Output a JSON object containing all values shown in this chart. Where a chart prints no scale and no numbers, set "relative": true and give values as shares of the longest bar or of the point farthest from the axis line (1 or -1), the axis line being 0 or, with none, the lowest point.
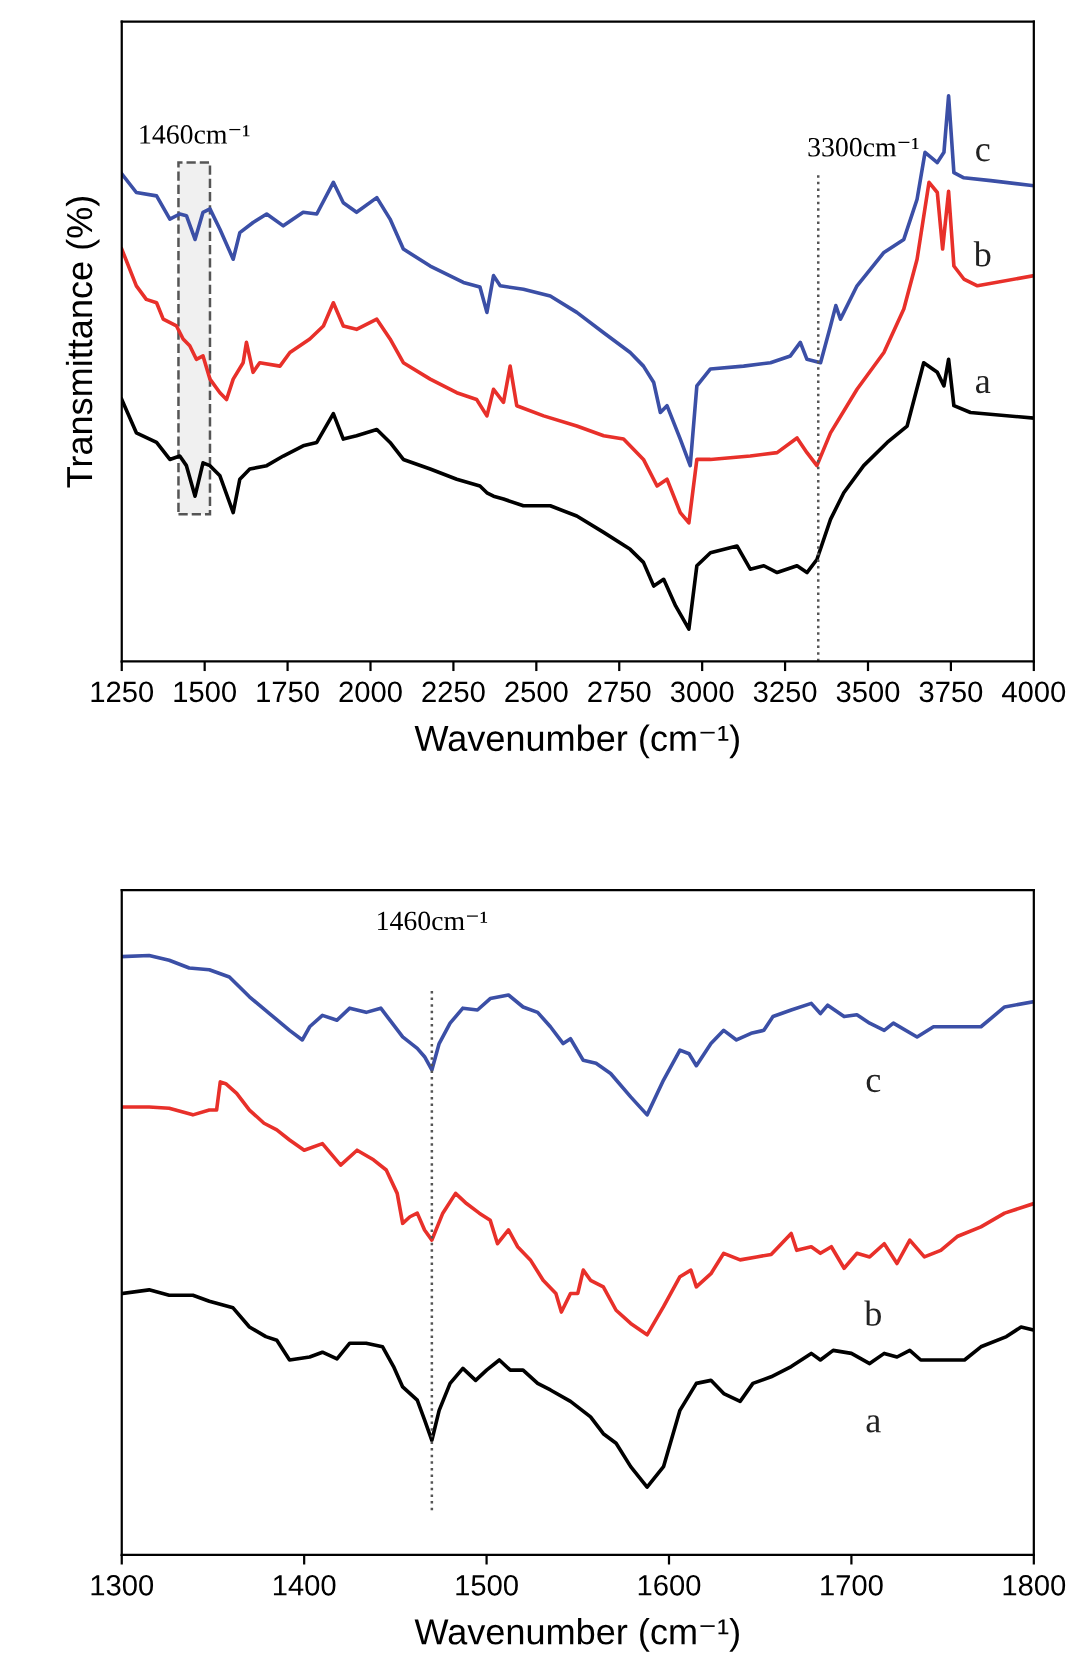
{
  "chart_data": [
    {
      "type": "line",
      "relative": true,
      "xlabel": "Wavenumber (cm⁻¹)",
      "ylabel": "Transmittance (%)",
      "xlim": [
        1250,
        4000
      ],
      "xticks": [
        1250,
        1500,
        1750,
        2000,
        2250,
        2500,
        2750,
        3000,
        3250,
        3500,
        3750,
        4000
      ],
      "ref_lines": [
        {
          "axis": "x",
          "value": 3350,
          "label": "3300cm⁻¹",
          "line_style": "dotted"
        }
      ],
      "bands": [
        {
          "axis": "x",
          "from": 1421,
          "to": 1516,
          "label": "1460cm⁻¹"
        }
      ],
      "series": [
        {
          "name": "c",
          "color": "#3b4fa6",
          "x": [
            1250,
            1294,
            1355,
            1395,
            1425,
            1445,
            1471,
            1495,
            1516,
            1546,
            1586,
            1606,
            1646,
            1687,
            1737,
            1797,
            1838,
            1888,
            1918,
            1958,
            2019,
            2059,
            2099,
            2180,
            2280,
            2330,
            2351,
            2371,
            2391,
            2461,
            2542,
            2622,
            2703,
            2783,
            2823,
            2854,
            2874,
            2894,
            2934,
            2964,
            2984,
            3025,
            3125,
            3206,
            3266,
            3296,
            3316,
            3357,
            3387,
            3403,
            3417,
            3467,
            3548,
            3608,
            3648,
            3672,
            3709,
            3729,
            3743,
            3759,
            3789,
            3870,
            4000
          ],
          "values": [
            0.862,
            0.829,
            0.823,
            0.782,
            0.791,
            0.788,
            0.746,
            0.794,
            0.8,
            0.764,
            0.711,
            0.758,
            0.776,
            0.791,
            0.77,
            0.794,
            0.791,
            0.847,
            0.811,
            0.794,
            0.82,
            0.782,
            0.729,
            0.699,
            0.67,
            0.662,
            0.617,
            0.682,
            0.664,
            0.658,
            0.646,
            0.617,
            0.581,
            0.546,
            0.522,
            0.493,
            0.44,
            0.452,
            0.393,
            0.346,
            0.487,
            0.517,
            0.522,
            0.528,
            0.54,
            0.564,
            0.534,
            0.528,
            0.593,
            0.629,
            0.605,
            0.664,
            0.723,
            0.746,
            0.817,
            0.9,
            0.882,
            0.9,
            1.0,
            0.864,
            0.855,
            0.85,
            0.841
          ]
        },
        {
          "name": "b",
          "color": "#e8302a",
          "x": [
            1250,
            1294,
            1324,
            1355,
            1375,
            1415,
            1435,
            1455,
            1475,
            1495,
            1516,
            1546,
            1566,
            1586,
            1616,
            1626,
            1646,
            1666,
            1727,
            1757,
            1817,
            1858,
            1888,
            1918,
            1958,
            2019,
            2059,
            2099,
            2180,
            2260,
            2320,
            2351,
            2371,
            2401,
            2421,
            2441,
            2522,
            2622,
            2703,
            2763,
            2823,
            2864,
            2894,
            2934,
            2960,
            2984,
            3025,
            3145,
            3226,
            3286,
            3316,
            3346,
            3387,
            3467,
            3548,
            3608,
            3648,
            3684,
            3709,
            3725,
            3743,
            3759,
            3789,
            3830,
            4000
          ],
          "values": [
            0.729,
            0.664,
            0.64,
            0.634,
            0.605,
            0.593,
            0.57,
            0.558,
            0.534,
            0.54,
            0.499,
            0.475,
            0.463,
            0.499,
            0.528,
            0.564,
            0.511,
            0.528,
            0.522,
            0.546,
            0.57,
            0.593,
            0.634,
            0.593,
            0.587,
            0.605,
            0.57,
            0.528,
            0.499,
            0.475,
            0.463,
            0.434,
            0.481,
            0.458,
            0.522,
            0.452,
            0.434,
            0.416,
            0.399,
            0.393,
            0.357,
            0.31,
            0.322,
            0.263,
            0.245,
            0.357,
            0.357,
            0.363,
            0.369,
            0.395,
            0.369,
            0.346,
            0.404,
            0.481,
            0.546,
            0.623,
            0.711,
            0.847,
            0.829,
            0.729,
            0.831,
            0.699,
            0.676,
            0.664,
            0.682
          ]
        },
        {
          "name": "a",
          "color": "#000000",
          "x": [
            1250,
            1294,
            1355,
            1395,
            1425,
            1445,
            1471,
            1495,
            1516,
            1546,
            1586,
            1606,
            1636,
            1687,
            1737,
            1797,
            1838,
            1888,
            1918,
            1958,
            2019,
            2059,
            2099,
            2180,
            2260,
            2330,
            2351,
            2371,
            2401,
            2461,
            2542,
            2622,
            2703,
            2783,
            2823,
            2854,
            2884,
            2920,
            2960,
            2984,
            3025,
            3105,
            3145,
            3186,
            3226,
            3286,
            3316,
            3346,
            3387,
            3427,
            3487,
            3558,
            3618,
            3668,
            3709,
            3729,
            3743,
            3759,
            3809,
            4000
          ],
          "values": [
            0.463,
            0.404,
            0.387,
            0.357,
            0.363,
            0.346,
            0.292,
            0.351,
            0.346,
            0.328,
            0.263,
            0.322,
            0.34,
            0.346,
            0.363,
            0.381,
            0.387,
            0.438,
            0.393,
            0.399,
            0.41,
            0.387,
            0.357,
            0.34,
            0.322,
            0.31,
            0.298,
            0.292,
            0.287,
            0.275,
            0.275,
            0.257,
            0.228,
            0.198,
            0.175,
            0.133,
            0.145,
            0.098,
            0.057,
            0.169,
            0.192,
            0.204,
            0.163,
            0.169,
            0.157,
            0.169,
            0.157,
            0.18,
            0.251,
            0.298,
            0.346,
            0.387,
            0.416,
            0.528,
            0.511,
            0.487,
            0.534,
            0.452,
            0.44,
            0.43
          ]
        }
      ]
    },
    {
      "type": "line",
      "relative": true,
      "xlabel": "Wavenumber (cm⁻¹)",
      "xlim": [
        1300,
        1800
      ],
      "xticks": [
        1300,
        1400,
        1500,
        1600,
        1700,
        1800
      ],
      "ref_lines": [
        {
          "axis": "x",
          "value": 1470,
          "label": "1460cm⁻¹",
          "line_style": "dotted"
        }
      ],
      "series": [
        {
          "name": "c",
          "color": "#3b4fa6",
          "x": [
            1300,
            1315,
            1326,
            1337,
            1348,
            1359,
            1370,
            1381,
            1392,
            1399,
            1403,
            1410,
            1418,
            1425,
            1434,
            1442,
            1447,
            1454,
            1462,
            1466,
            1470,
            1474,
            1480,
            1487,
            1495,
            1502,
            1512,
            1520,
            1528,
            1535,
            1542,
            1546,
            1553,
            1560,
            1568,
            1579,
            1588,
            1597,
            1606,
            1611,
            1615,
            1623,
            1630,
            1637,
            1645,
            1652,
            1657,
            1667,
            1678,
            1683,
            1687,
            1696,
            1703,
            1710,
            1718,
            1723,
            1736,
            1745,
            1758,
            1771,
            1784,
            1800
          ],
          "values": [
            0.998,
            1.0,
            0.992,
            0.979,
            0.976,
            0.964,
            0.931,
            0.903,
            0.875,
            0.859,
            0.881,
            0.9,
            0.892,
            0.912,
            0.905,
            0.912,
            0.892,
            0.864,
            0.845,
            0.831,
            0.809,
            0.853,
            0.887,
            0.912,
            0.909,
            0.928,
            0.934,
            0.914,
            0.905,
            0.881,
            0.853,
            0.861,
            0.825,
            0.82,
            0.803,
            0.764,
            0.734,
            0.792,
            0.842,
            0.836,
            0.816,
            0.853,
            0.875,
            0.859,
            0.87,
            0.875,
            0.898,
            0.909,
            0.92,
            0.903,
            0.917,
            0.898,
            0.901,
            0.887,
            0.875,
            0.887,
            0.864,
            0.881,
            0.881,
            0.881,
            0.914,
            0.923
          ]
        },
        {
          "name": "b",
          "color": "#e8302a",
          "x": [
            1300,
            1315,
            1326,
            1339,
            1348,
            1352,
            1354,
            1357,
            1363,
            1370,
            1378,
            1385,
            1392,
            1400,
            1410,
            1420,
            1429,
            1438,
            1445,
            1451,
            1454,
            1458,
            1462,
            1466,
            1470,
            1476,
            1483,
            1489,
            1496,
            1502,
            1506,
            1512,
            1517,
            1524,
            1531,
            1538,
            1541,
            1546,
            1550,
            1553,
            1557,
            1564,
            1571,
            1579,
            1588,
            1597,
            1606,
            1612,
            1615,
            1623,
            1630,
            1639,
            1648,
            1656,
            1667,
            1670,
            1678,
            1683,
            1689,
            1696,
            1703,
            1710,
            1718,
            1725,
            1732,
            1740,
            1749,
            1758,
            1771,
            1784,
            1800
          ],
          "values": [
            0.747,
            0.747,
            0.745,
            0.734,
            0.742,
            0.742,
            0.789,
            0.786,
            0.77,
            0.742,
            0.72,
            0.709,
            0.692,
            0.675,
            0.686,
            0.65,
            0.675,
            0.659,
            0.642,
            0.603,
            0.553,
            0.564,
            0.57,
            0.542,
            0.525,
            0.57,
            0.603,
            0.586,
            0.57,
            0.558,
            0.519,
            0.542,
            0.514,
            0.492,
            0.458,
            0.436,
            0.405,
            0.436,
            0.436,
            0.475,
            0.458,
            0.447,
            0.408,
            0.386,
            0.367,
            0.414,
            0.464,
            0.475,
            0.447,
            0.469,
            0.503,
            0.492,
            0.497,
            0.501,
            0.536,
            0.508,
            0.514,
            0.503,
            0.514,
            0.478,
            0.503,
            0.497,
            0.519,
            0.486,
            0.525,
            0.497,
            0.508,
            0.531,
            0.547,
            0.57,
            0.586
          ]
        },
        {
          "name": "a",
          "color": "#000000",
          "x": [
            1300,
            1315,
            1326,
            1339,
            1348,
            1361,
            1370,
            1379,
            1385,
            1392,
            1403,
            1410,
            1418,
            1425,
            1434,
            1443,
            1449,
            1454,
            1462,
            1466,
            1470,
            1474,
            1480,
            1487,
            1494,
            1500,
            1507,
            1513,
            1520,
            1528,
            1535,
            1546,
            1557,
            1564,
            1571,
            1579,
            1588,
            1597,
            1606,
            1615,
            1623,
            1630,
            1639,
            1646,
            1656,
            1667,
            1678,
            1683,
            1690,
            1700,
            1710,
            1718,
            1725,
            1732,
            1738,
            1747,
            1762,
            1771,
            1785,
            1793,
            1800
          ],
          "values": [
            0.436,
            0.442,
            0.433,
            0.433,
            0.423,
            0.412,
            0.38,
            0.364,
            0.358,
            0.325,
            0.33,
            0.338,
            0.327,
            0.353,
            0.353,
            0.347,
            0.314,
            0.28,
            0.258,
            0.225,
            0.191,
            0.241,
            0.286,
            0.311,
            0.291,
            0.308,
            0.325,
            0.308,
            0.308,
            0.286,
            0.275,
            0.256,
            0.23,
            0.202,
            0.186,
            0.147,
            0.113,
            0.147,
            0.241,
            0.286,
            0.291,
            0.269,
            0.256,
            0.286,
            0.297,
            0.314,
            0.336,
            0.325,
            0.341,
            0.336,
            0.319,
            0.336,
            0.33,
            0.341,
            0.325,
            0.325,
            0.325,
            0.347,
            0.364,
            0.38,
            0.375
          ]
        }
      ]
    }
  ]
}
